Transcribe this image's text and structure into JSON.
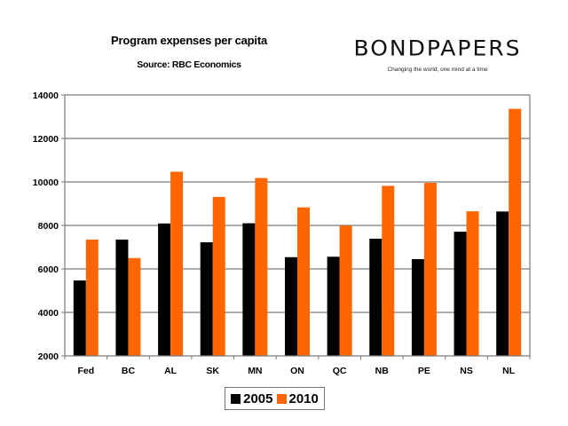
{
  "header": {
    "brand": "BONDPAPERS",
    "tagline": "Changing the world, one mind at a time"
  },
  "chart_data": {
    "type": "bar",
    "title": "Program expenses per capita",
    "subtitle": "Source:  RBC Economics",
    "xlabel": "",
    "ylabel": "",
    "ylim": [
      2000,
      14000
    ],
    "yticks": [
      2000,
      4000,
      6000,
      8000,
      10000,
      12000,
      14000
    ],
    "grid": true,
    "legend_position": "bottom",
    "categories": [
      "Fed",
      "BC",
      "AL",
      "SK",
      "MN",
      "ON",
      "QC",
      "NB",
      "PE",
      "NS",
      "NL"
    ],
    "series": [
      {
        "name": "2005",
        "color": "#000000",
        "values": [
          5470,
          7350,
          8090,
          7225,
          8100,
          6540,
          6560,
          7390,
          6450,
          7710,
          8640
        ]
      },
      {
        "name": "2010",
        "color": "#ff6600",
        "values": [
          7350,
          6500,
          10470,
          9310,
          10180,
          8830,
          7990,
          9820,
          9960,
          8650,
          13360
        ]
      }
    ]
  }
}
